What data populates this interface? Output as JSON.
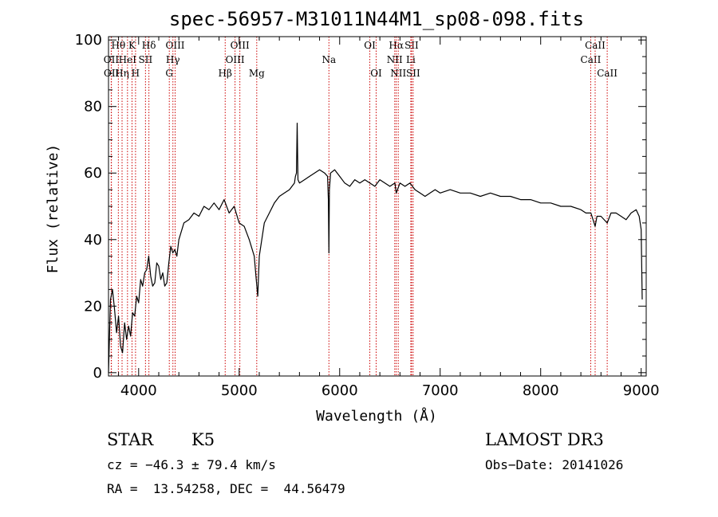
{
  "chart_data": {
    "type": "line",
    "title": "spec-56957-M31011N44M1_sp08-098.fits",
    "xlabel": "Wavelength (Å)",
    "ylabel": "Flux (relative)",
    "xlim": [
      3700,
      9050
    ],
    "ylim": [
      -1,
      101
    ],
    "xticks": [
      4000,
      5000,
      6000,
      7000,
      8000,
      9000
    ],
    "yticks": [
      0,
      20,
      40,
      60,
      80,
      100
    ],
    "grid": false,
    "series": [
      {
        "name": "spectrum",
        "x": [
          3700,
          3720,
          3740,
          3760,
          3780,
          3800,
          3820,
          3840,
          3860,
          3880,
          3900,
          3920,
          3940,
          3960,
          3980,
          4000,
          4020,
          4040,
          4060,
          4080,
          4100,
          4120,
          4140,
          4160,
          4180,
          4200,
          4220,
          4240,
          4260,
          4280,
          4300,
          4320,
          4340,
          4360,
          4380,
          4400,
          4450,
          4500,
          4550,
          4600,
          4650,
          4700,
          4750,
          4800,
          4850,
          4900,
          4950,
          5000,
          5050,
          5100,
          5150,
          5170,
          5185,
          5200,
          5250,
          5300,
          5350,
          5400,
          5450,
          5500,
          5550,
          5560,
          5570,
          5577,
          5585,
          5600,
          5650,
          5700,
          5750,
          5800,
          5850,
          5880,
          5888,
          5893,
          5898,
          5910,
          5950,
          6000,
          6050,
          6100,
          6150,
          6200,
          6250,
          6300,
          6350,
          6400,
          6450,
          6500,
          6550,
          6563,
          6600,
          6650,
          6700,
          6750,
          6800,
          6850,
          6900,
          6950,
          7000,
          7100,
          7200,
          7300,
          7400,
          7500,
          7600,
          7700,
          7800,
          7900,
          8000,
          8100,
          8200,
          8300,
          8400,
          8450,
          8500,
          8542,
          8560,
          8600,
          8662,
          8700,
          8750,
          8800,
          8850,
          8900,
          8950,
          8980,
          9000,
          9010
        ],
        "values": [
          0,
          22,
          25,
          19,
          12,
          17,
          8,
          6,
          15,
          10,
          14,
          11,
          18,
          17,
          23,
          21,
          28,
          26,
          30,
          31,
          35,
          29,
          26,
          27,
          33,
          32,
          28,
          30,
          26,
          27,
          33,
          38,
          36,
          37,
          35,
          40,
          45,
          46,
          48,
          47,
          50,
          49,
          51,
          49,
          52,
          48,
          50,
          45,
          44,
          40,
          35,
          28,
          23,
          35,
          45,
          48,
          51,
          53,
          54,
          55,
          57,
          59,
          60,
          75,
          58,
          57,
          58,
          59,
          60,
          61,
          60,
          59,
          52,
          36,
          55,
          60,
          61,
          59,
          57,
          56,
          58,
          57,
          58,
          57,
          56,
          58,
          57,
          56,
          57,
          54,
          57,
          56,
          57,
          55,
          54,
          53,
          54,
          55,
          54,
          55,
          54,
          54,
          53,
          54,
          53,
          53,
          52,
          52,
          51,
          51,
          50,
          50,
          49,
          48,
          48,
          44,
          47,
          47,
          45,
          48,
          48,
          47,
          46,
          48,
          49,
          47,
          43,
          22
        ]
      }
    ],
    "lines": [
      {
        "name": "Hθ",
        "x": 3798,
        "row": 0
      },
      {
        "name": "OII",
        "x": 3727,
        "row": 1
      },
      {
        "name": "OII",
        "x": 3729,
        "row": 2
      },
      {
        "name": "Hη",
        "x": 3835,
        "row": 2
      },
      {
        "name": "HeI",
        "x": 3889,
        "row": 1
      },
      {
        "name": "K",
        "x": 3934,
        "row": 0
      },
      {
        "name": "H",
        "x": 3969,
        "row": 2
      },
      {
        "name": "SII",
        "x": 4068,
        "row": 1
      },
      {
        "name": "Hδ",
        "x": 4102,
        "row": 0
      },
      {
        "name": "OIII",
        "x": 4363,
        "row": 0
      },
      {
        "name": "Hγ",
        "x": 4341,
        "row": 1
      },
      {
        "name": "G",
        "x": 4305,
        "row": 2
      },
      {
        "name": "Hβ",
        "x": 4861,
        "row": 2
      },
      {
        "name": "OIII",
        "x": 5007,
        "row": 0
      },
      {
        "name": "OIII",
        "x": 4959,
        "row": 1
      },
      {
        "name": "Mg",
        "x": 5175,
        "row": 2
      },
      {
        "name": "Na",
        "x": 5893,
        "row": 1
      },
      {
        "name": "OI",
        "x": 6300,
        "row": 0
      },
      {
        "name": "OI",
        "x": 6363,
        "row": 2
      },
      {
        "name": "Hα",
        "x": 6563,
        "row": 0
      },
      {
        "name": "NII",
        "x": 6548,
        "row": 1
      },
      {
        "name": "NII",
        "x": 6583,
        "row": 2
      },
      {
        "name": "SII",
        "x": 6716,
        "row": 0
      },
      {
        "name": "Li",
        "x": 6708,
        "row": 1
      },
      {
        "name": "SII",
        "x": 6731,
        "row": 2
      },
      {
        "name": "CaII",
        "x": 8498,
        "row": 1
      },
      {
        "name": "CaII",
        "x": 8542,
        "row": 0
      },
      {
        "name": "CaII",
        "x": 8662,
        "row": 2
      }
    ]
  },
  "info": {
    "class": "STAR",
    "subclass": "K5",
    "survey": "LAMOST DR3",
    "cz": "cz = −46.3 ± 79.4 km/s",
    "obs_date": "Obs−Date: 20141026",
    "coords": "RA =  13.54258, DEC =  44.56479"
  }
}
